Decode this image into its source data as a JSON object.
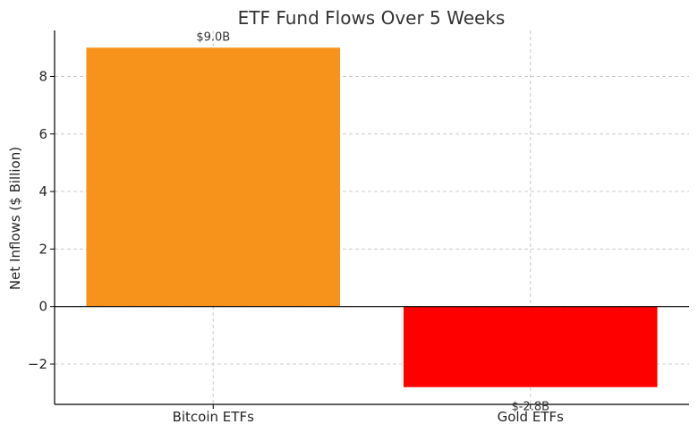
{
  "chart_data": {
    "type": "bar",
    "title": "ETF Fund Flows Over 5 Weeks",
    "xlabel": "",
    "ylabel": "Net Inflows ($ Billion)",
    "categories": [
      "Bitcoin ETFs",
      "Gold ETFs"
    ],
    "values": [
      9.0,
      -2.8
    ],
    "data_labels": [
      "$9.0B",
      "$-2.8B"
    ],
    "colors": [
      "#f7931a",
      "#ff0000"
    ],
    "ylim": [
      -3.4,
      9.6
    ],
    "yticks": [
      -2,
      0,
      2,
      4,
      6,
      8
    ],
    "ytick_labels": [
      "−2",
      "0",
      "2",
      "4",
      "6",
      "8"
    ],
    "grid": true,
    "zero_line": true
  }
}
